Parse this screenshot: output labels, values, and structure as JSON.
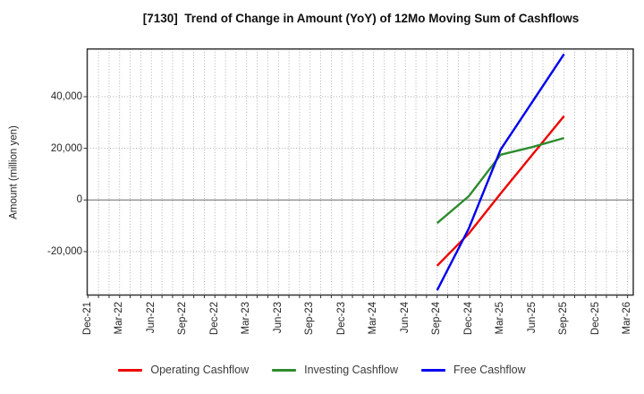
{
  "chart_data": {
    "type": "line",
    "title": "[7130]  Trend of Change in Amount (YoY) of 12Mo Moving Sum of Cashflows",
    "ylabel": "Amount (million yen)",
    "xlabel": "",
    "x_ticklabels": [
      "Dec-21",
      "Mar-22",
      "Jun-22",
      "Sep-22",
      "Dec-22",
      "Mar-23",
      "Jun-23",
      "Sep-23",
      "Dec-23",
      "Mar-24",
      "Jun-24",
      "Sep-24",
      "Dec-24",
      "Mar-25",
      "Jun-25",
      "Sep-25",
      "Dec-25",
      "Mar-26"
    ],
    "y_ticks": [
      -20000,
      0,
      20000,
      40000
    ],
    "y_ticklabels": [
      "-20,000",
      "0",
      "20,000",
      "40,000"
    ],
    "ylim": [
      -36800,
      58400
    ],
    "grid": {
      "vertical": "monthly, dotted gray",
      "horizontal": "dotted gray at ticks, solid gray at zero",
      "legend_position": "bottom center"
    },
    "series": [
      {
        "name": "Operating Cashflow",
        "color": "#ee0000",
        "x": [
          "Sep-24",
          "Dec-24",
          "Mar-25",
          "Jun-25",
          "Sep-25"
        ],
        "values": [
          -25500,
          -13000,
          2500,
          17500,
          32500
        ]
      },
      {
        "name": "Investing Cashflow",
        "color": "#2e8b2e",
        "x": [
          "Sep-24",
          "Dec-24",
          "Mar-25",
          "Jun-25",
          "Sep-25"
        ],
        "values": [
          -9000,
          1500,
          17500,
          20500,
          24000
        ]
      },
      {
        "name": "Free Cashflow",
        "color": "#0000ee",
        "x": [
          "Sep-24",
          "Dec-24",
          "Mar-25",
          "Jun-25",
          "Sep-25"
        ],
        "values": [
          -35000,
          -11000,
          19500,
          38000,
          56500
        ]
      }
    ],
    "axis_color": "#333333",
    "zero_line_color": "#7a7a7a",
    "grid_color": "#9a9a9a"
  }
}
